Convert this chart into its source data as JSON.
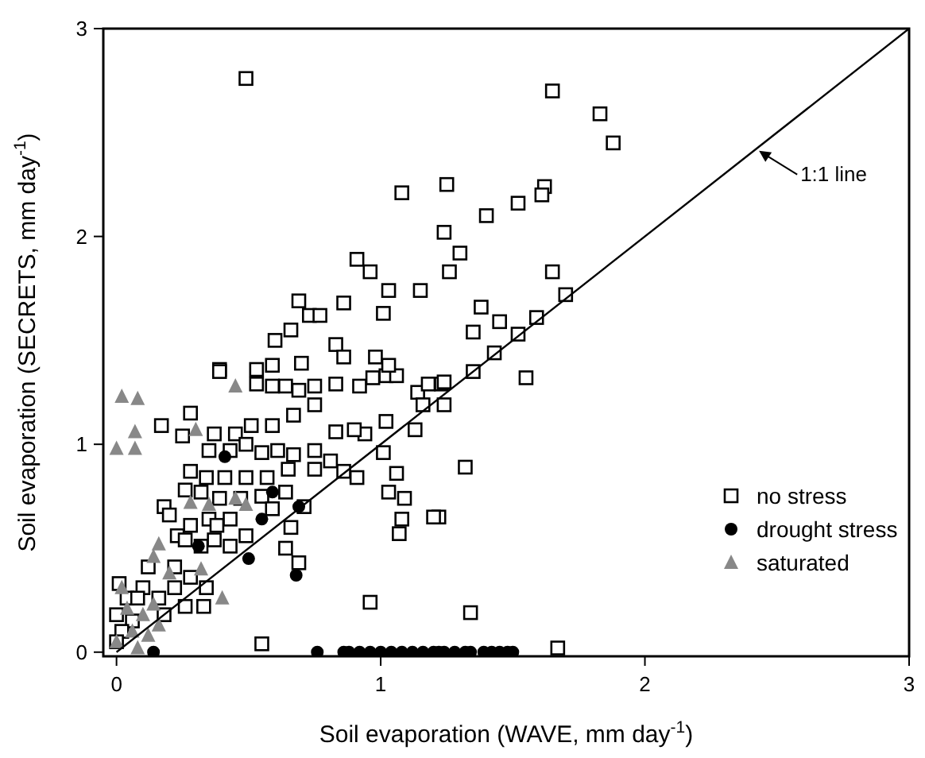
{
  "chart_data": {
    "type": "scatter",
    "xlabel": "Soil evaporation (WAVE, mm day$^{-1}$)",
    "ylabel": "Soil evaporation (SECRETS, mm day$^{-1}$)",
    "xlim": [
      -0.05,
      3
    ],
    "ylim": [
      -0.02,
      3
    ],
    "xticks": [
      0,
      1,
      2,
      3
    ],
    "yticks": [
      0,
      1,
      2,
      3
    ],
    "grid": false,
    "legend": "right",
    "annotations": [
      {
        "text": "1:1 line",
        "x": 2.42,
        "y": 2.42
      }
    ],
    "series": [
      {
        "name": "no stress",
        "color": "#000000",
        "marker": "square",
        "x": [
          0.49,
          1.08,
          1.25,
          1.24,
          1.3,
          1.26,
          0.91,
          0.96,
          1.03,
          1.15,
          0.86,
          1.01,
          0.69,
          0.73,
          0.77,
          0.66,
          0.6,
          0.83,
          0.39,
          1.65,
          1.83,
          1.88,
          1.62,
          1.61,
          1.52,
          1.4,
          1.65,
          1.38,
          1.45,
          1.35,
          1.7,
          1.59,
          1.52,
          1.43,
          1.35,
          1.55,
          1.23,
          1.24,
          1.32,
          1.22,
          1.34,
          1.67,
          0.39,
          0.17,
          0.25,
          0.28,
          0.53,
          0.59,
          0.64,
          0.69,
          0.75,
          0.83,
          0.92,
          0.97,
          1.02,
          1.06,
          1.14,
          1.18,
          1.24,
          1.16,
          1.02,
          1.13,
          1.01,
          0.94,
          0.9,
          0.83,
          0.75,
          0.67,
          0.59,
          0.51,
          0.45,
          0.37,
          0.35,
          0.43,
          0.49,
          0.55,
          0.61,
          0.67,
          0.75,
          0.81,
          0.86,
          0.91,
          0.75,
          0.65,
          0.57,
          0.49,
          0.41,
          0.34,
          0.28,
          0.26,
          0.32,
          0.39,
          0.47,
          0.55,
          0.64,
          0.71,
          0.66,
          0.59,
          0.43,
          0.35,
          0.28,
          0.23,
          0.18,
          0.2,
          0.26,
          0.32,
          0.37,
          0.43,
          0.49,
          0.38,
          0.64,
          0.69,
          1.06,
          1.03,
          1.09,
          1.08,
          1.07,
          1.2,
          0.96,
          0.55,
          0.01,
          0.04,
          0.0,
          0.06,
          0.12,
          0.22,
          0.28,
          0.34,
          0.22,
          0.16,
          0.1,
          0.26,
          0.33,
          0.18,
          0.08,
          0.02,
          0.0,
          0.53,
          0.59,
          0.7,
          0.86,
          0.98,
          1.03
        ],
        "values": [
          2.76,
          2.21,
          2.25,
          2.02,
          1.92,
          1.83,
          1.89,
          1.83,
          1.74,
          1.74,
          1.68,
          1.63,
          1.69,
          1.62,
          1.62,
          1.55,
          1.5,
          1.48,
          1.36,
          2.7,
          2.59,
          2.45,
          2.24,
          2.2,
          2.16,
          2.1,
          1.83,
          1.66,
          1.59,
          1.54,
          1.72,
          1.61,
          1.53,
          1.44,
          1.35,
          1.32,
          1.29,
          1.19,
          0.89,
          0.65,
          0.19,
          0.02,
          1.35,
          1.09,
          1.04,
          1.15,
          1.29,
          1.28,
          1.28,
          1.26,
          1.28,
          1.29,
          1.28,
          1.32,
          1.33,
          1.33,
          1.25,
          1.29,
          1.3,
          1.19,
          1.11,
          1.07,
          0.96,
          1.05,
          1.07,
          1.06,
          1.19,
          1.14,
          1.09,
          1.09,
          1.05,
          1.05,
          0.97,
          0.97,
          1.0,
          0.96,
          0.97,
          0.95,
          0.97,
          0.92,
          0.87,
          0.84,
          0.88,
          0.88,
          0.84,
          0.84,
          0.84,
          0.84,
          0.87,
          0.78,
          0.77,
          0.74,
          0.74,
          0.75,
          0.77,
          0.7,
          0.6,
          0.69,
          0.64,
          0.64,
          0.61,
          0.56,
          0.7,
          0.66,
          0.54,
          0.51,
          0.54,
          0.51,
          0.56,
          0.61,
          0.5,
          0.43,
          0.86,
          0.77,
          0.74,
          0.64,
          0.57,
          0.65,
          0.24,
          0.04,
          0.33,
          0.26,
          0.18,
          0.15,
          0.41,
          0.41,
          0.36,
          0.31,
          0.31,
          0.26,
          0.31,
          0.22,
          0.22,
          0.18,
          0.26,
          0.1,
          0.05,
          1.36,
          1.38,
          1.39,
          1.42,
          1.42,
          1.38
        ]
      },
      {
        "name": "drought stress",
        "color": "#000000",
        "marker": "circle",
        "x": [
          0.14,
          0.76,
          0.86,
          0.88,
          0.92,
          0.96,
          1.0,
          1.04,
          1.08,
          1.12,
          1.16,
          1.2,
          1.24,
          1.28,
          1.32,
          1.22,
          1.34,
          1.39,
          1.42,
          1.45,
          1.48,
          1.5,
          0.41,
          0.55,
          0.69,
          0.5,
          0.68,
          0.31,
          0.59
        ],
        "values": [
          0,
          0,
          0,
          0,
          0,
          0,
          0,
          0,
          0,
          0,
          0,
          0,
          0,
          0,
          0,
          0,
          0,
          0,
          0,
          0,
          0,
          0,
          0.94,
          0.64,
          0.7,
          0.45,
          0.37,
          0.51,
          0.77
        ]
      },
      {
        "name": "saturated",
        "color": "#888888",
        "marker": "triangle",
        "x": [
          0.0,
          0.07,
          0.07,
          0.02,
          0.08,
          0.45,
          0.3,
          0.28,
          0.35,
          0.45,
          0.49,
          0.16,
          0.14,
          0.2,
          0.32,
          0.4,
          0.02,
          0.04,
          0.1,
          0.14,
          0.06,
          0.12,
          0.0,
          0.16,
          0.08
        ],
        "values": [
          0.98,
          0.98,
          1.06,
          1.23,
          1.22,
          1.28,
          1.07,
          0.72,
          0.71,
          0.74,
          0.71,
          0.52,
          0.46,
          0.38,
          0.4,
          0.26,
          0.31,
          0.21,
          0.18,
          0.23,
          0.1,
          0.08,
          0.05,
          0.13,
          0.02
        ]
      },
      {
        "type": "line",
        "color": "#000000",
        "x": [
          0,
          3
        ],
        "values": [
          0,
          3
        ]
      }
    ]
  }
}
